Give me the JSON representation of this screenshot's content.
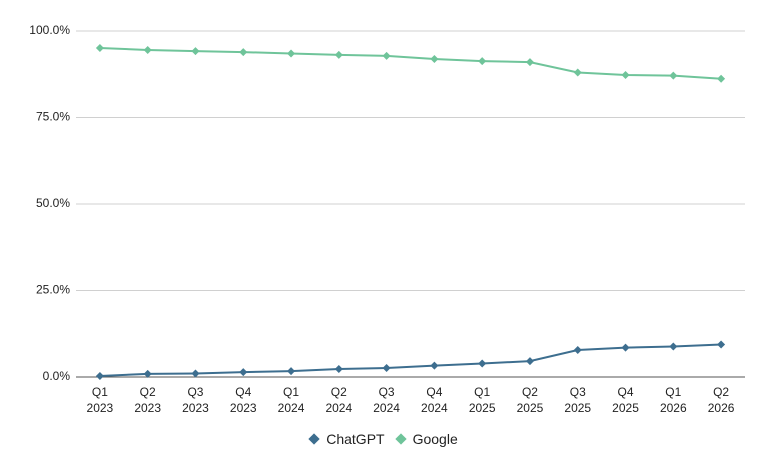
{
  "chart_data": {
    "type": "line",
    "categories": [
      "Q1 2023",
      "Q2 2023",
      "Q3 2023",
      "Q4 2023",
      "Q1 2024",
      "Q2 2024",
      "Q3 2024",
      "Q4 2024",
      "Q1 2025",
      "Q2 2025",
      "Q3 2025",
      "Q4 2025",
      "Q1 2026",
      "Q2 2026"
    ],
    "series": [
      {
        "name": "ChatGPT",
        "color": "#3d6e8f",
        "values": [
          0.3,
          0.9,
          1.0,
          1.4,
          1.7,
          2.3,
          2.6,
          3.3,
          3.9,
          4.6,
          7.8,
          8.5,
          8.8,
          9.4
        ]
      },
      {
        "name": "Google",
        "color": "#6fc49a",
        "values": [
          95.1,
          94.5,
          94.2,
          93.9,
          93.5,
          93.1,
          92.8,
          91.9,
          91.3,
          91.0,
          88.0,
          87.3,
          87.1,
          86.2
        ]
      }
    ],
    "ylim": [
      0,
      100
    ],
    "yticks": [
      {
        "value": 0,
        "label": "0.0%"
      },
      {
        "value": 25,
        "label": "25.0%"
      },
      {
        "value": 50,
        "label": "50.0%"
      },
      {
        "value": 75,
        "label": "75.0%"
      },
      {
        "value": 100,
        "label": "100.0%"
      }
    ],
    "grid": true,
    "legend": "bottom"
  }
}
